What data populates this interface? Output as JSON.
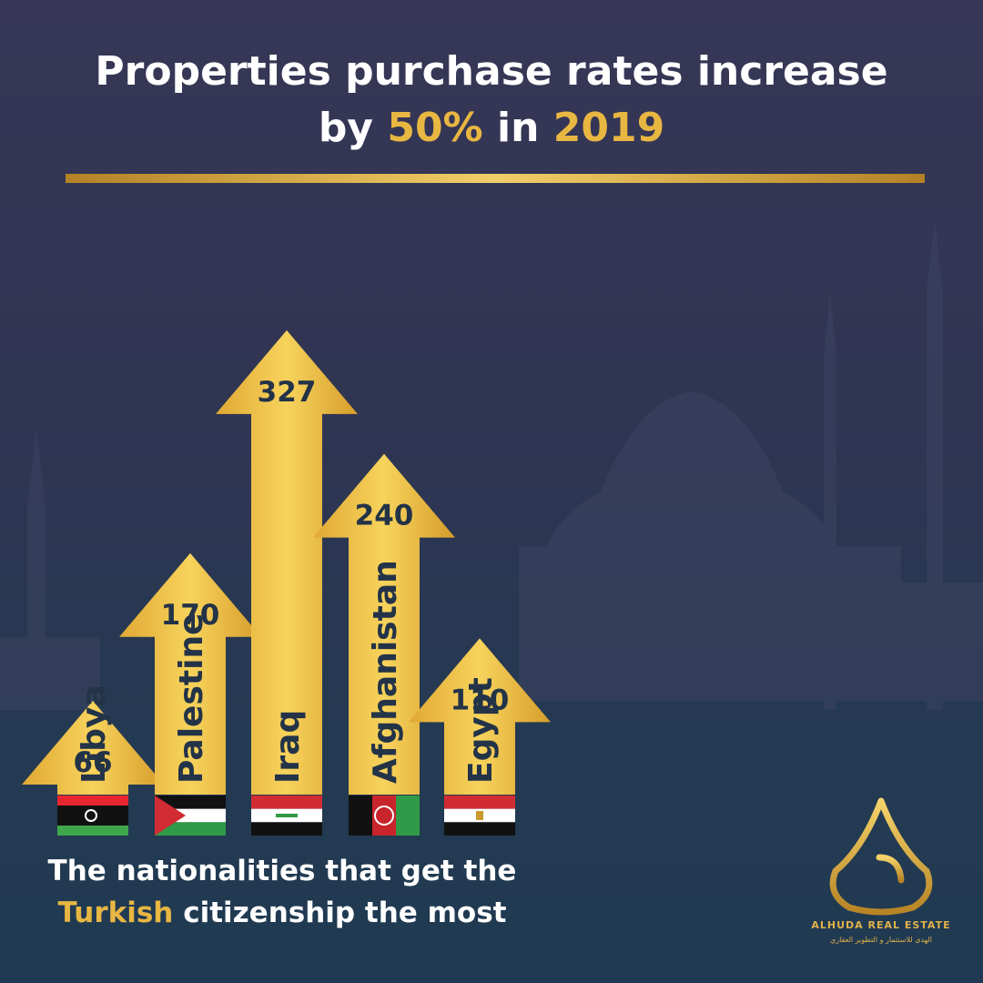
{
  "title": {
    "line1": "Properties purchase rates increase",
    "prefix": "by",
    "percent": "50%",
    "middle": "in",
    "year": "2019"
  },
  "subtitle": {
    "line1": "The nationalities that get the",
    "highlight": "Turkish",
    "rest": "citizenship the most"
  },
  "brand": {
    "name": "ALHUDA REAL ESTATE",
    "tagline_ar": "الهدى للاستثمار و التطوير العقاري"
  },
  "colors": {
    "gold": "#e8b742",
    "text_dark": "#233348",
    "background": "#2f3552"
  },
  "chart_data": {
    "type": "bar",
    "style": "upward arrows",
    "title": "",
    "xlabel": "",
    "ylabel": "",
    "categories": [
      "Libya",
      "Palestine",
      "Iraq",
      "Afghanistan",
      "Egypt"
    ],
    "values": [
      66,
      170,
      327,
      240,
      110
    ],
    "flags": [
      "libya-flag-icon",
      "palestine-flag-icon",
      "iraq-flag-icon",
      "afghanistan-flag-icon",
      "egypt-flag-icon"
    ]
  }
}
